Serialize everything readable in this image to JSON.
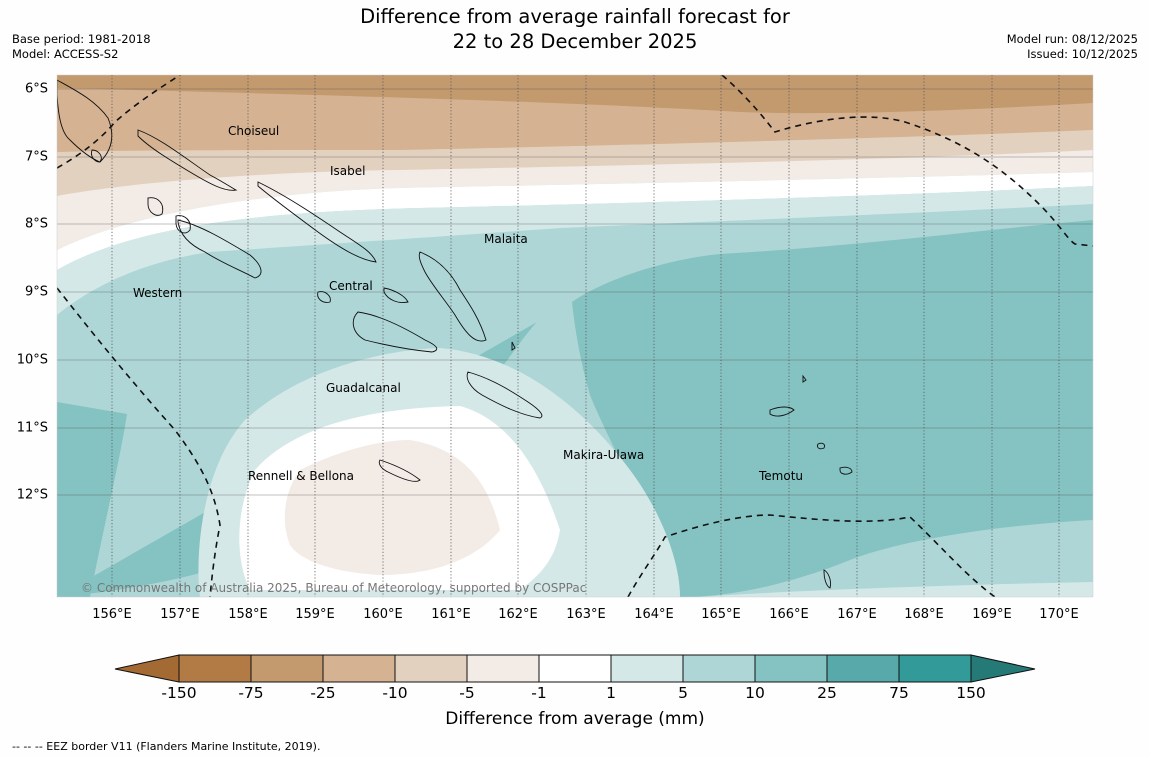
{
  "title": {
    "line1": "Difference from average rainfall forecast for",
    "line2": "22 to 28 December 2025"
  },
  "meta_left": {
    "base_period": "Base period: 1981-2018",
    "model": "Model: ACCESS-S2"
  },
  "meta_right": {
    "model_run": "Model run: 08/12/2025",
    "issued": "Issued: 10/12/2025"
  },
  "axes": {
    "longitudes": [
      "156°E",
      "157°E",
      "158°E",
      "159°E",
      "160°E",
      "161°E",
      "162°E",
      "163°E",
      "164°E",
      "165°E",
      "166°E",
      "167°E",
      "168°E",
      "169°E",
      "170°E"
    ],
    "latitudes": [
      "6°S",
      "7°S",
      "8°S",
      "9°S",
      "10°S",
      "11°S",
      "12°S"
    ]
  },
  "regions": {
    "choiseul": "Choiseul",
    "isabel": "Isabel",
    "malaita": "Malaita",
    "western": "Western",
    "central": "Central",
    "guadalcanal": "Guadalcanal",
    "rennell": "Rennell & Bellona",
    "makira": "Makira-Ulawa",
    "temotu": "Temotu"
  },
  "copyright": "© Commonwealth of Australia 2025, Bureau of Meteorology, supported by COSPPac",
  "colorbar": {
    "title": "Difference from average (mm)",
    "labels": [
      "-150",
      "-75",
      "-25",
      "-10",
      "-5",
      "-1",
      "1",
      "5",
      "10",
      "25",
      "75",
      "150"
    ],
    "colors": {
      "below_min": "#a46a33",
      "b1": "#b27a45",
      "b2": "#c3996e",
      "b3": "#d5b291",
      "b4": "#e3d1bf",
      "b5": "#f3ebe6",
      "neutral": "#ffffff",
      "g1": "#d5e8e8",
      "g2": "#aed6d6",
      "g3": "#85c2c2",
      "g4": "#58aaaa",
      "g5": "#329a98",
      "above_max": "#257a78"
    }
  },
  "footer": "--  --  -- EEZ border V11 (Flanders Marine Institute, 2019)."
}
